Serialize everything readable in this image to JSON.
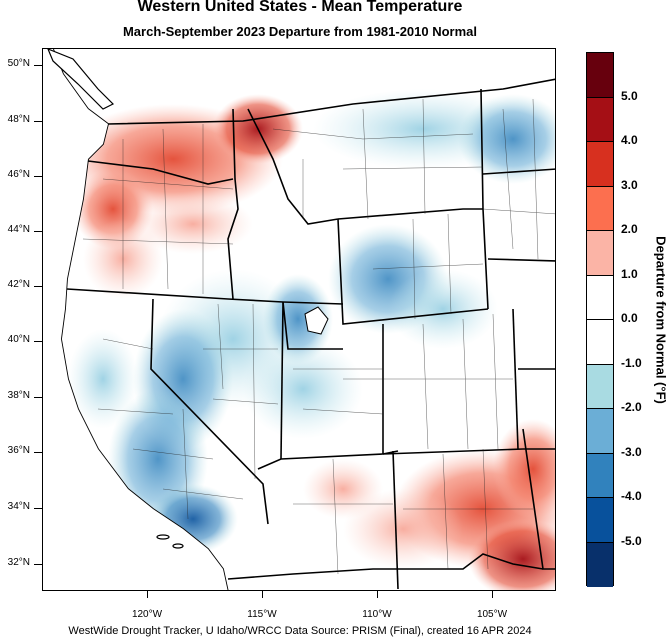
{
  "title": "Western United States - Mean Temperature",
  "subtitle": "March-September 2023  Departure from 1981-2010 Normal",
  "latitude_labels": [
    "50°N",
    "48°N",
    "46°N",
    "44°N",
    "42°N",
    "40°N",
    "38°N",
    "36°N",
    "34°N",
    "32°N"
  ],
  "longitude_labels": [
    "120°W",
    "115°W",
    "110°W",
    "105°W"
  ],
  "colorbar": {
    "title": "Departure from Normal (°F)",
    "labels": [
      "5.0",
      "4.0",
      "3.0",
      "2.0",
      "1.0",
      "0.0",
      "-1.0",
      "-2.0",
      "-3.0",
      "-4.0",
      "-5.0"
    ],
    "colors": [
      "#67000d",
      "#a50f15",
      "#d7301f",
      "#fc6f4f",
      "#fbb4a6",
      "#ffffff",
      "#ffffff",
      "#a9dbe2",
      "#6baed6",
      "#3182bd",
      "#08519c",
      "#08306b"
    ]
  },
  "footer": "WestWide Drought Tracker, U Idaho/WRCC Data Source: PRISM (Final), created 16 APR 2024"
}
